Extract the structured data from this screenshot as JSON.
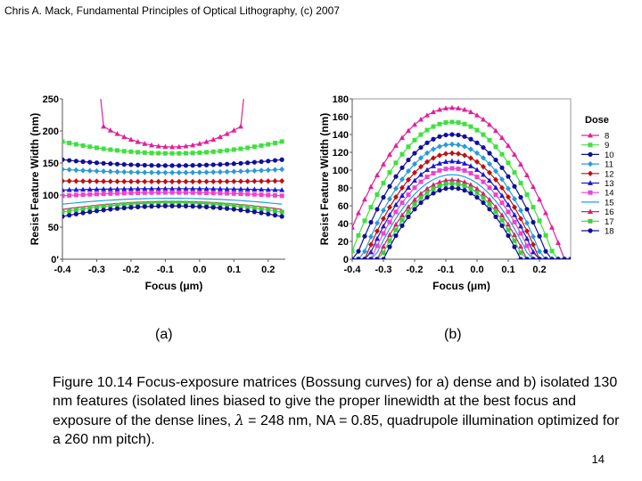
{
  "header": "Chris A. Mack, Fundamental Principles of Optical Lithography, (c) 2007",
  "labels": {
    "a": "(a)",
    "b": "(b)"
  },
  "caption": {
    "part1": "Figure 10.14  Focus-exposure matrices (Bossung curves) for a) dense and b) isolated 130 nm features (isolated lines biased to give the proper linewidth at the best focus and exposure of the dense lines, ",
    "lambda_symbol": "λ",
    "part2": " = 248 nm, NA = 0.85, quadrupole illumination optimized for a 260 nm pitch)."
  },
  "page_number": "14",
  "chart_data": [
    {
      "id": "a",
      "type": "line",
      "title": "",
      "xlabel": "Focus (μm)",
      "ylabel": "Resist Feature Width (nm)",
      "xlim": [
        -0.4,
        0.25
      ],
      "ylim": [
        0,
        250
      ],
      "xticks": [
        -0.4,
        -0.3,
        -0.2,
        -0.1,
        0.0,
        0.1,
        0.2
      ],
      "xtick_labels": [
        "-0.4",
        "-0.3",
        "-0.2",
        "-0.1",
        "0.0",
        "0.1",
        "0.2"
      ],
      "yticks": [
        0,
        50,
        100,
        150,
        200,
        250
      ],
      "ytick_labels": [
        "0'",
        "50",
        "100",
        "150",
        "200",
        "250"
      ],
      "grid": false,
      "focus_points": [
        -0.4,
        -0.38,
        -0.36,
        -0.34,
        -0.32,
        -0.3,
        -0.28,
        -0.26,
        -0.24,
        -0.22,
        -0.2,
        -0.18,
        -0.16,
        -0.14,
        -0.12,
        -0.1,
        -0.08,
        -0.06,
        -0.04,
        -0.02,
        0.0,
        0.02,
        0.04,
        0.06,
        0.08,
        0.1,
        0.12,
        0.14,
        0.16,
        0.18,
        0.2,
        0.22,
        0.24
      ],
      "series": [
        {
          "name": "8",
          "color": "#e0209a",
          "marker": "triangle",
          "center": 175,
          "curvature": 6000,
          "asym": 0.0
        },
        {
          "name": "9",
          "color": "#3fe03f",
          "marker": "square",
          "center": 165,
          "curvature": 180,
          "asym": 0.05
        },
        {
          "name": "10",
          "color": "#10109a",
          "marker": "circle",
          "center": 146,
          "curvature": 90,
          "asym": 0.05
        },
        {
          "name": "11",
          "color": "#2a9ad8",
          "marker": "diamond",
          "center": 135,
          "curvature": 50,
          "asym": 0.0
        },
        {
          "name": "12",
          "color": "#c01010",
          "marker": "diamond",
          "center": 121,
          "curvature": 10,
          "asym": 0.0
        },
        {
          "name": "13",
          "color": "#1a1acc",
          "marker": "triangle",
          "center": 110,
          "curvature": -20,
          "asym": 0.0
        },
        {
          "name": "14",
          "color": "#ee44cc",
          "marker": "square",
          "center": 104,
          "curvature": -50,
          "asym": 0.0
        },
        {
          "name": "15",
          "color": "#1aa0e0",
          "marker": "none",
          "center": 95,
          "curvature": -90,
          "asym": 0.0
        },
        {
          "name": "16",
          "color": "#d8206a",
          "marker": "none",
          "center": 90,
          "curvature": -120,
          "asym": 0.0
        },
        {
          "name": "17",
          "color": "#40cc40",
          "marker": "square",
          "center": 88,
          "curvature": -140,
          "asym": 0.0
        },
        {
          "name": "18",
          "color": "#10109a",
          "marker": "circle",
          "center": 83,
          "curvature": -160,
          "asym": 0.0
        }
      ]
    },
    {
      "id": "b",
      "type": "line",
      "title": "",
      "xlabel": "Focus (μm)",
      "ylabel": "Resist Feature Width (nm)",
      "xlim": [
        -0.4,
        0.3
      ],
      "ylim": [
        0,
        180
      ],
      "xticks": [
        -0.4,
        -0.3,
        -0.2,
        -0.1,
        0.0,
        0.1,
        0.2
      ],
      "xtick_labels": [
        "-0.4",
        "-0.3",
        "-0.2",
        "-0.1",
        "0.0",
        "0.1",
        "0.2"
      ],
      "yticks": [
        0,
        20,
        40,
        60,
        80,
        100,
        120,
        140,
        160,
        180
      ],
      "ytick_labels": [
        "0",
        "20",
        "40",
        "60",
        "80",
        "100",
        "120",
        "140",
        "160",
        "180"
      ],
      "grid": false,
      "legend_title": "Dose",
      "legend_position": "right",
      "focus_points": [
        -0.4,
        -0.38,
        -0.36,
        -0.34,
        -0.32,
        -0.3,
        -0.28,
        -0.26,
        -0.24,
        -0.22,
        -0.2,
        -0.18,
        -0.16,
        -0.14,
        -0.12,
        -0.1,
        -0.08,
        -0.06,
        -0.04,
        -0.02,
        0.0,
        0.02,
        0.04,
        0.06,
        0.08,
        0.1,
        0.12,
        0.14,
        0.16,
        0.18,
        0.2,
        0.22,
        0.24,
        0.26,
        0.28,
        0.3
      ],
      "center_focus": -0.08,
      "series": [
        {
          "name": "8",
          "color": "#e0209a",
          "marker": "triangle",
          "peak": 170,
          "half_width": 0.36
        },
        {
          "name": "9",
          "color": "#3fe03f",
          "marker": "square",
          "peak": 154,
          "half_width": 0.33
        },
        {
          "name": "10",
          "color": "#10109a",
          "marker": "circle",
          "peak": 140,
          "half_width": 0.31
        },
        {
          "name": "11",
          "color": "#2a9ad8",
          "marker": "diamond",
          "peak": 129,
          "half_width": 0.29
        },
        {
          "name": "12",
          "color": "#c01010",
          "marker": "diamond",
          "peak": 119,
          "half_width": 0.28
        },
        {
          "name": "13",
          "color": "#1a1acc",
          "marker": "triangle",
          "peak": 110,
          "half_width": 0.27
        },
        {
          "name": "14",
          "color": "#ee44cc",
          "marker": "square",
          "peak": 102,
          "half_width": 0.26
        },
        {
          "name": "15",
          "color": "#1aa0e0",
          "marker": "none",
          "peak": 95,
          "half_width": 0.25
        },
        {
          "name": "16",
          "color": "#d8206a",
          "marker": "triangle",
          "peak": 89,
          "half_width": 0.24
        },
        {
          "name": "17",
          "color": "#40cc40",
          "marker": "square",
          "peak": 85,
          "half_width": 0.23
        },
        {
          "name": "18",
          "color": "#10109a",
          "marker": "circle",
          "peak": 80,
          "half_width": 0.22
        }
      ]
    }
  ]
}
